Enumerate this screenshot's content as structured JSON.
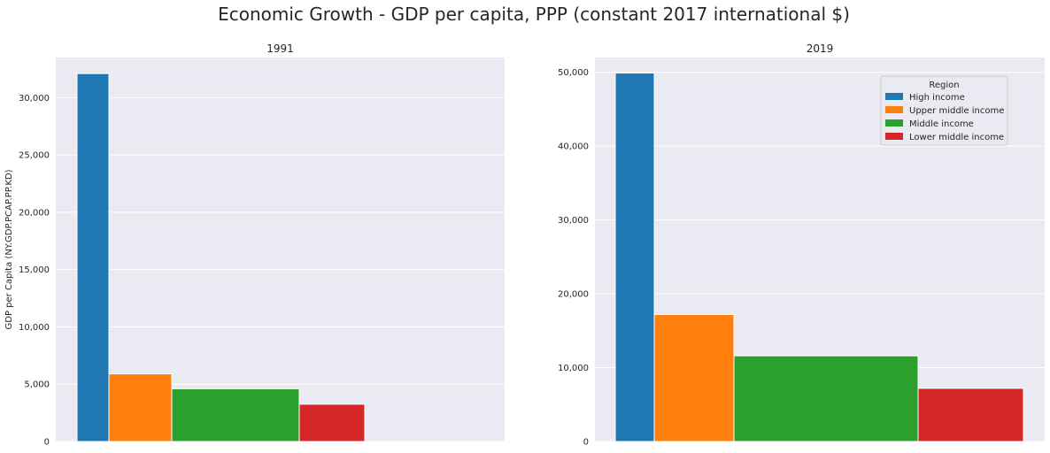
{
  "figure_title": "Economic Growth - GDP per capita, PPP (constant 2017 international $)",
  "chart_data": [
    {
      "type": "bar",
      "title": "1991",
      "ylabel": "GDP per Capita (NY.GDP.PCAP.PP.KD)",
      "xlabel": "",
      "ylim": [
        0,
        33500
      ],
      "yticks": [
        0,
        5000,
        10000,
        15000,
        20000,
        25000,
        30000
      ],
      "ytick_labels": [
        "0",
        "5,000",
        "10,000",
        "15,000",
        "20,000",
        "25,000",
        "30,000"
      ],
      "grid": "y",
      "series": [
        {
          "name": "High income",
          "color": "#1f77b4",
          "value": 32100
        },
        {
          "name": "Upper middle income",
          "color": "#ff7f0e",
          "value": 5900
        },
        {
          "name": "Middle income",
          "color": "#2ca02c",
          "value": 4600
        },
        {
          "name": "Lower middle income",
          "color": "#d62728",
          "value": 3250
        }
      ]
    },
    {
      "type": "bar",
      "title": "2019",
      "ylabel": "",
      "xlabel": "",
      "ylim": [
        0,
        52000
      ],
      "yticks": [
        0,
        10000,
        20000,
        30000,
        40000,
        50000
      ],
      "ytick_labels": [
        "0",
        "10,000",
        "20,000",
        "30,000",
        "40,000",
        "50,000"
      ],
      "grid": "y",
      "legend": {
        "title": "Region",
        "placement": "top-right"
      },
      "series": [
        {
          "name": "High income",
          "color": "#1f77b4",
          "value": 49900
        },
        {
          "name": "Upper middle income",
          "color": "#ff7f0e",
          "value": 17200
        },
        {
          "name": "Middle income",
          "color": "#2ca02c",
          "value": 11600
        },
        {
          "name": "Lower middle income",
          "color": "#d62728",
          "value": 7200
        }
      ]
    }
  ]
}
